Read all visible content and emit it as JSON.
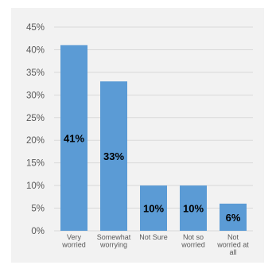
{
  "chart_data": {
    "type": "bar",
    "title": "",
    "xlabel": "",
    "ylabel": "",
    "categories": [
      [
        "Very",
        "worried"
      ],
      [
        "Somewhat",
        "worrying"
      ],
      [
        "Not Sure"
      ],
      [
        "Not so",
        "worried"
      ],
      [
        "Not",
        "worried at",
        "all"
      ]
    ],
    "values": [
      41,
      33,
      10,
      10,
      6
    ],
    "data_labels": [
      "41%",
      "33%",
      "10%",
      "10%",
      "6%"
    ],
    "ylim": [
      0,
      45
    ],
    "y_ticks": [
      "0%",
      "5%",
      "10%",
      "15%",
      "20%",
      "25%",
      "30%",
      "35%",
      "40%",
      "45%"
    ],
    "y_tick_values": [
      0,
      5,
      10,
      15,
      20,
      25,
      30,
      35,
      40,
      45
    ],
    "grid": true,
    "legend": "none",
    "colors": {
      "bar": "#5b9bd5",
      "background": "#f2f2f2",
      "grid": "#d9d9d9",
      "axis_text": "#595959",
      "data_label": "#000000"
    }
  }
}
